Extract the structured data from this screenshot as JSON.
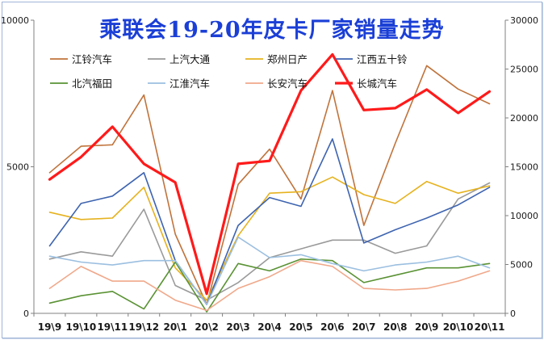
{
  "chart_data": {
    "type": "line",
    "title": "乘联会19-20年皮卡厂家销量走势",
    "categories": [
      "19\\9",
      "19\\10",
      "19\\11",
      "19\\12",
      "20\\1",
      "20\\2",
      "20\\3",
      "20\\4",
      "20\\5",
      "20\\6",
      "20\\7",
      "20\\8",
      "20\\9",
      "20\\10",
      "20\\11"
    ],
    "y_left": {
      "ylim": [
        0,
        10000
      ],
      "ticks": [
        0,
        5000,
        10000
      ]
    },
    "y_right": {
      "ylim": [
        0,
        30000
      ],
      "ticks": [
        0,
        5000,
        10000,
        15000,
        20000,
        25000,
        30000
      ]
    },
    "grid": false,
    "legend_position": "top-left",
    "series": [
      {
        "name": "江铃汽车",
        "axis": "left",
        "color": "#c0733b",
        "width": 1.6,
        "values": [
          4800,
          5700,
          5750,
          7450,
          2700,
          300,
          4400,
          5600,
          3900,
          7600,
          3000,
          5800,
          8450,
          7650,
          7150
        ]
      },
      {
        "name": "上汽大通",
        "axis": "left",
        "color": "#9a9a9a",
        "width": 1.6,
        "values": [
          1850,
          2100,
          1950,
          3550,
          950,
          450,
          1050,
          1900,
          2200,
          2500,
          2500,
          2050,
          2300,
          3900,
          4450
        ]
      },
      {
        "name": "郑州日产",
        "axis": "left",
        "color": "#e6b21e",
        "width": 1.6,
        "values": [
          3450,
          3200,
          3250,
          4300,
          1550,
          450,
          2650,
          4100,
          4150,
          4650,
          4050,
          3750,
          4500,
          4100,
          4350
        ]
      },
      {
        "name": "江西五十铃",
        "axis": "left",
        "color": "#3e64b0",
        "width": 1.6,
        "values": [
          2300,
          3750,
          4000,
          4800,
          1800,
          300,
          3000,
          3950,
          3650,
          5950,
          2400,
          2850,
          3250,
          3700,
          4300
        ]
      },
      {
        "name": "北汽福田",
        "axis": "left",
        "color": "#5a9234",
        "width": 1.6,
        "values": [
          350,
          600,
          750,
          150,
          1750,
          50,
          1700,
          1450,
          1850,
          1800,
          1050,
          1300,
          1550,
          1550,
          1700
        ]
      },
      {
        "name": "江淮汽车",
        "axis": "left",
        "color": "#9bbfe0",
        "width": 1.6,
        "values": [
          1950,
          1750,
          1650,
          1800,
          1800,
          300,
          2600,
          1900,
          2000,
          1700,
          1450,
          1650,
          1750,
          1950,
          1550
        ]
      },
      {
        "name": "长安汽车",
        "axis": "left",
        "color": "#f0a88a",
        "width": 1.6,
        "values": [
          850,
          1600,
          1100,
          1100,
          450,
          100,
          850,
          1250,
          1800,
          1600,
          850,
          800,
          850,
          1100,
          1450
        ]
      },
      {
        "name": "长城汽车",
        "axis": "right",
        "color": "#ff1a1a",
        "width": 3.2,
        "values": [
          13700,
          16000,
          19100,
          15300,
          13400,
          2000,
          15300,
          15600,
          22800,
          26500,
          20800,
          21000,
          22900,
          20500,
          22700
        ]
      }
    ]
  }
}
